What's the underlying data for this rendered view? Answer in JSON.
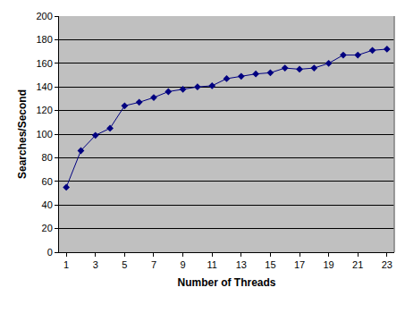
{
  "chart_data": {
    "type": "line",
    "x_label": "Number of Threads",
    "y_label": "Searches/Second",
    "categories": [
      "1",
      null,
      "3",
      null,
      "5",
      null,
      "7",
      null,
      "9",
      null,
      "11",
      null,
      "13",
      null,
      "15",
      null,
      "17",
      null,
      "19",
      null,
      "21",
      null,
      "23"
    ],
    "values": [
      55,
      86,
      99,
      105,
      124,
      127,
      131,
      136,
      138,
      140,
      141,
      147,
      149,
      151,
      152,
      156,
      155,
      156,
      160,
      167,
      167,
      171,
      172
    ],
    "color": "#000080",
    "marker": "diamond",
    "ylim": [
      0,
      200
    ],
    "yticks": [
      0,
      20,
      40,
      60,
      80,
      100,
      120,
      140,
      160,
      180,
      200
    ],
    "grid": true
  }
}
